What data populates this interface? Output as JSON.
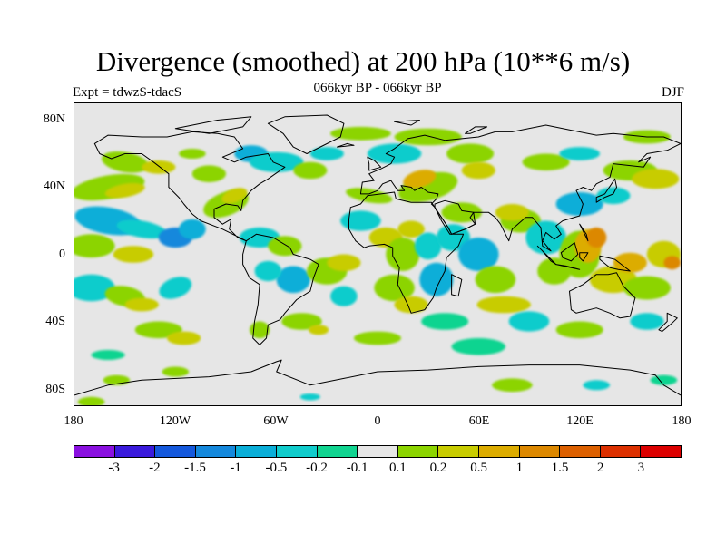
{
  "title": "Divergence (smoothed) at 200 hPa (10**6 m/s)",
  "left_label": "Expt = tdwzS-tdacS",
  "center_label": "066kyr BP - 066kyr BP",
  "right_label": "DJF",
  "lat_ticks": [
    "80N",
    "40N",
    "0",
    "40S",
    "80S"
  ],
  "lon_ticks": [
    "180",
    "120W",
    "60W",
    "0",
    "60E",
    "120E",
    "180"
  ],
  "colorbar": {
    "labels": [
      "-3",
      "-2",
      "-1.5",
      "-1",
      "-0.5",
      "-0.2",
      "-0.1",
      "0.1",
      "0.2",
      "0.5",
      "1",
      "1.5",
      "2",
      "3"
    ],
    "colors": [
      "#8a10e0",
      "#3a1adc",
      "#1458dc",
      "#1488dc",
      "#0aaed8",
      "#10cccc",
      "#10d490",
      "#e6e6e6",
      "#8cd400",
      "#c8cc00",
      "#dcac00",
      "#dc8800",
      "#dc6000",
      "#dc3000",
      "#dc0000"
    ]
  },
  "map": {
    "lon_range": [
      -180,
      180
    ],
    "lat_range": [
      -90,
      90
    ],
    "lat_tick_values": [
      80,
      40,
      0,
      -40,
      -80
    ],
    "lon_tick_values": [
      -180,
      -120,
      -60,
      0,
      60,
      120,
      180
    ],
    "background_color": "#e6e6e6",
    "coastline_color": "#000000"
  }
}
